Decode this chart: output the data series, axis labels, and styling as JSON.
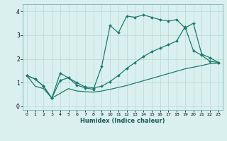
{
  "xlabel": "Humidex (Indice chaleur)",
  "bg_color": "#d9f0ee",
  "grid_color": "#b8d8d4",
  "line_color": "#1e7a6e",
  "xlim": [
    -0.5,
    23.5
  ],
  "ylim": [
    -0.15,
    4.3
  ],
  "xticks": [
    0,
    1,
    2,
    3,
    4,
    5,
    6,
    7,
    8,
    9,
    10,
    11,
    12,
    13,
    14,
    15,
    16,
    17,
    18,
    19,
    20,
    21,
    22,
    23
  ],
  "yticks": [
    0,
    1,
    2,
    3,
    4
  ],
  "line1_x": [
    0,
    1,
    2,
    3,
    4,
    5,
    6,
    7,
    8,
    9,
    10,
    11,
    12,
    13,
    14,
    15,
    16,
    17,
    18,
    19,
    20,
    21,
    22,
    23
  ],
  "line1_y": [
    1.3,
    1.15,
    0.85,
    0.35,
    1.4,
    1.2,
    0.9,
    0.78,
    0.72,
    1.7,
    3.4,
    3.1,
    3.8,
    3.75,
    3.85,
    3.75,
    3.65,
    3.6,
    3.65,
    3.3,
    3.5,
    2.2,
    2.05,
    1.85
  ],
  "line2_x": [
    0,
    1,
    2,
    3,
    4,
    5,
    6,
    7,
    8,
    9,
    10,
    11,
    12,
    13,
    14,
    15,
    16,
    17,
    18,
    19,
    20,
    21,
    22,
    23
  ],
  "line2_y": [
    1.3,
    1.15,
    0.85,
    0.35,
    1.1,
    1.2,
    1.0,
    0.82,
    0.78,
    0.85,
    1.05,
    1.3,
    1.6,
    1.85,
    2.1,
    2.3,
    2.45,
    2.6,
    2.75,
    3.35,
    2.35,
    2.15,
    1.9,
    1.85
  ],
  "line3_x": [
    0,
    1,
    2,
    3,
    4,
    5,
    6,
    7,
    8,
    9,
    10,
    11,
    12,
    13,
    14,
    15,
    16,
    17,
    18,
    19,
    20,
    21,
    22,
    23
  ],
  "line3_y": [
    1.3,
    0.85,
    0.75,
    0.35,
    0.55,
    0.75,
    0.65,
    0.62,
    0.6,
    0.65,
    0.72,
    0.8,
    0.88,
    0.98,
    1.08,
    1.18,
    1.28,
    1.38,
    1.48,
    1.58,
    1.65,
    1.72,
    1.8,
    1.82
  ]
}
